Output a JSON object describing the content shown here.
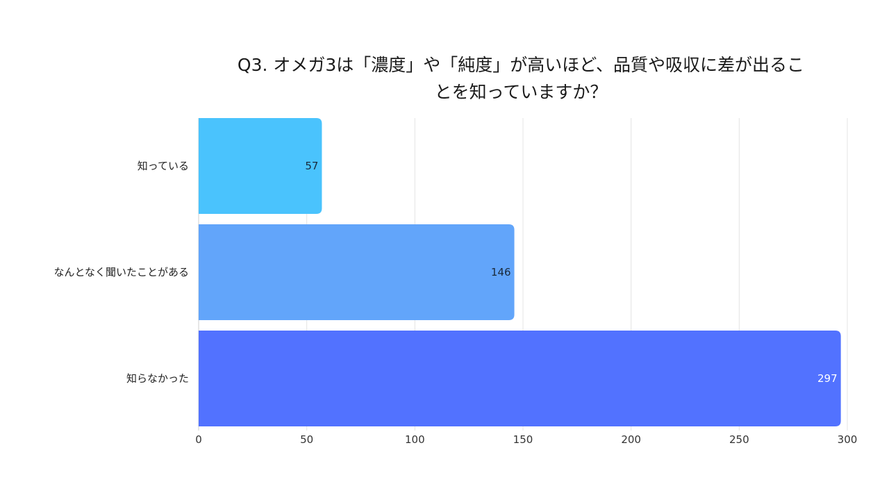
{
  "chart_data": {
    "type": "bar",
    "orientation": "horizontal",
    "title_lines": [
      "Q3. オメガ3は「濃度」や「純度」が高いほど、品質や吸収に差が出るこ",
      "とを知っていますか？"
    ],
    "categories": [
      "知っている",
      "なんとなく聞いたことがある",
      "知らなかった"
    ],
    "values": [
      57,
      146,
      297
    ],
    "colors": [
      "#4AC3FD",
      "#62A5FA",
      "#5272FF"
    ],
    "label_colors": [
      "#1a2a3a",
      "#1a2a3a",
      "#ffffff"
    ],
    "xlim": [
      0,
      300
    ],
    "xticks": [
      0,
      50,
      100,
      150,
      200,
      250,
      300
    ],
    "xlabel": "",
    "ylabel": "",
    "grid": true,
    "legend": "none"
  }
}
